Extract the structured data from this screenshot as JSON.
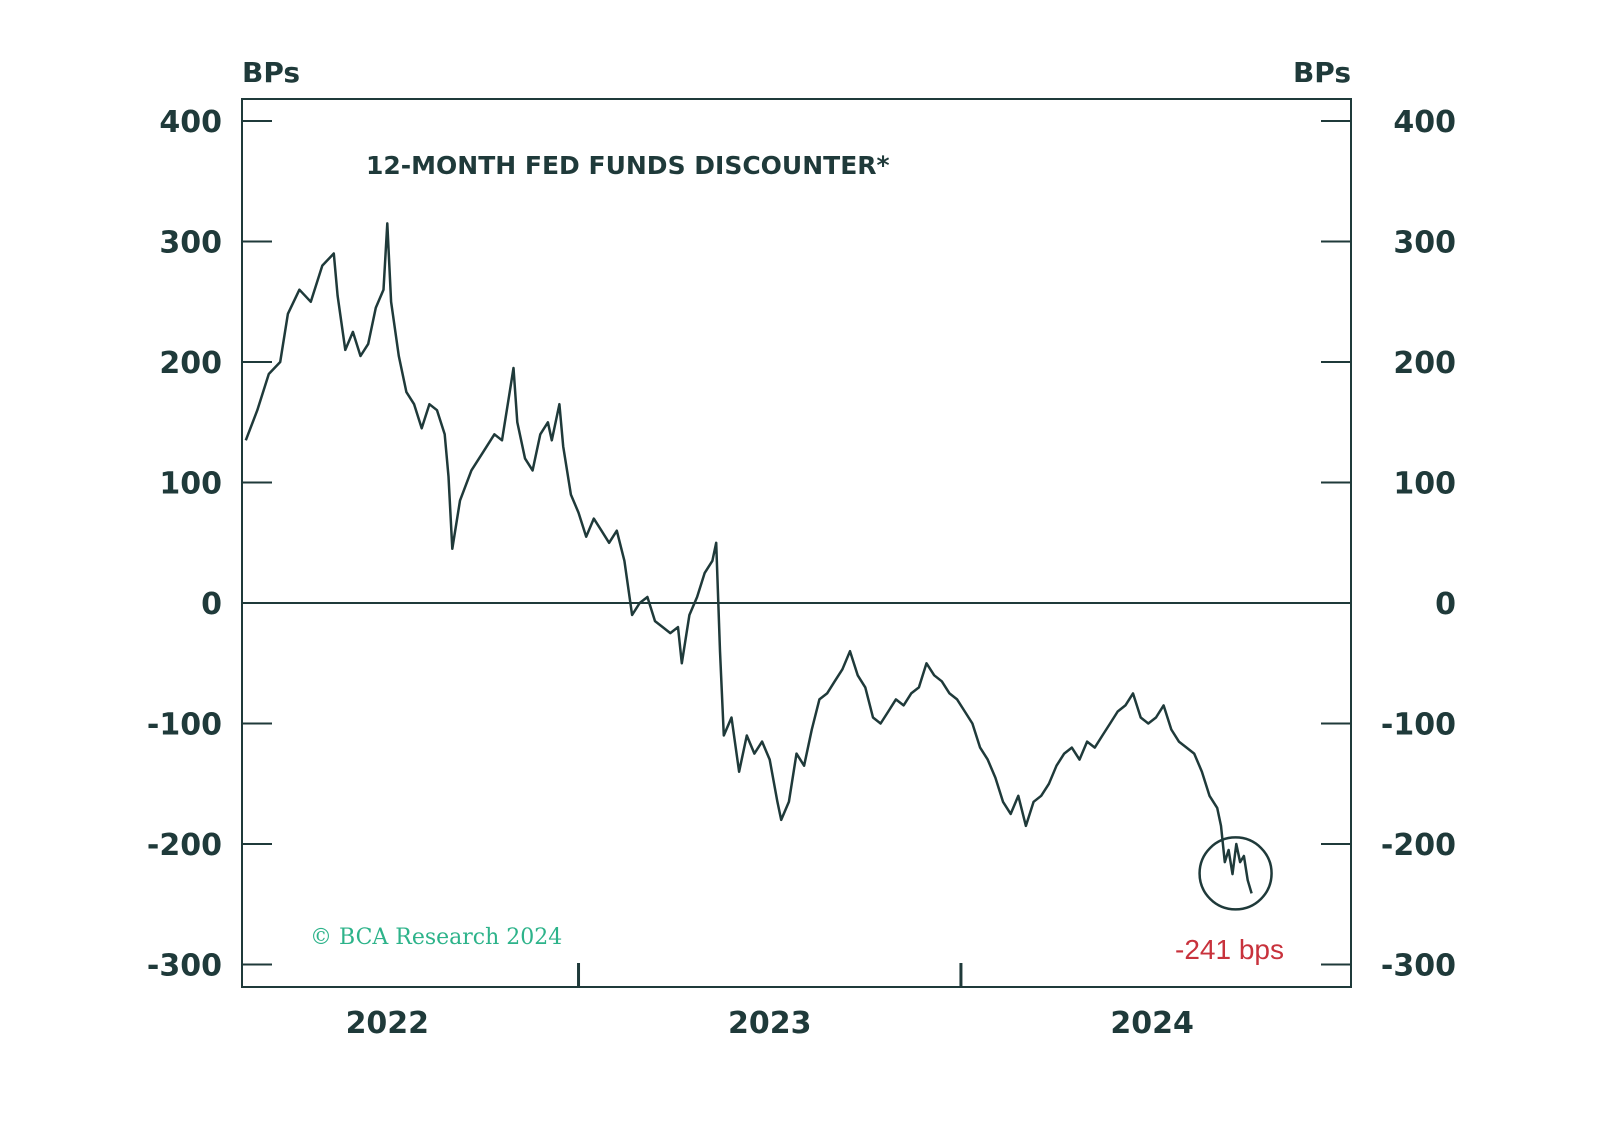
{
  "chart_data": {
    "type": "line",
    "title": "12-MONTH FED FUNDS DISCOUNTER*",
    "ylabel_left": "BPs",
    "ylabel_right": "BPs",
    "ylim": [
      -320,
      420
    ],
    "y_ticks": [
      400,
      300,
      200,
      100,
      0,
      -100,
      -200,
      -300
    ],
    "y_tick_labels": [
      "400",
      "300",
      "200",
      "100",
      "0",
      "-100",
      "-200",
      "-300"
    ],
    "x_range": [
      2021.62,
      2024.52
    ],
    "x_tick_positions": [
      2022.5,
      2023.5
    ],
    "x_labels": [
      {
        "label": "2022",
        "x": 2022.0
      },
      {
        "label": "2023",
        "x": 2023.0
      },
      {
        "label": "2024",
        "x": 2024.0
      }
    ],
    "zero_line": 0,
    "credit": "© BCA Research 2024",
    "annotation": {
      "label": "-241 bps",
      "x": 2024.26,
      "y": -241,
      "circle": true
    },
    "series": [
      {
        "name": "12-Month Fed Funds Discounter",
        "color": "#1f3a3a",
        "points": [
          [
            2021.63,
            135
          ],
          [
            2021.66,
            160
          ],
          [
            2021.69,
            190
          ],
          [
            2021.72,
            200
          ],
          [
            2021.74,
            240
          ],
          [
            2021.77,
            260
          ],
          [
            2021.8,
            250
          ],
          [
            2021.83,
            280
          ],
          [
            2021.86,
            290
          ],
          [
            2021.87,
            255
          ],
          [
            2021.89,
            210
          ],
          [
            2021.91,
            225
          ],
          [
            2021.93,
            205
          ],
          [
            2021.95,
            215
          ],
          [
            2021.97,
            245
          ],
          [
            2021.99,
            260
          ],
          [
            2022.0,
            315
          ],
          [
            2022.01,
            250
          ],
          [
            2022.03,
            205
          ],
          [
            2022.05,
            175
          ],
          [
            2022.07,
            165
          ],
          [
            2022.09,
            145
          ],
          [
            2022.11,
            165
          ],
          [
            2022.13,
            160
          ],
          [
            2022.15,
            140
          ],
          [
            2022.16,
            105
          ],
          [
            2022.17,
            45
          ],
          [
            2022.19,
            85
          ],
          [
            2022.22,
            110
          ],
          [
            2022.25,
            125
          ],
          [
            2022.28,
            140
          ],
          [
            2022.3,
            135
          ],
          [
            2022.32,
            175
          ],
          [
            2022.33,
            195
          ],
          [
            2022.34,
            150
          ],
          [
            2022.36,
            120
          ],
          [
            2022.38,
            110
          ],
          [
            2022.4,
            140
          ],
          [
            2022.42,
            150
          ],
          [
            2022.43,
            135
          ],
          [
            2022.45,
            165
          ],
          [
            2022.46,
            130
          ],
          [
            2022.48,
            90
          ],
          [
            2022.5,
            75
          ],
          [
            2022.52,
            55
          ],
          [
            2022.54,
            70
          ],
          [
            2022.56,
            60
          ],
          [
            2022.58,
            50
          ],
          [
            2022.6,
            60
          ],
          [
            2022.62,
            35
          ],
          [
            2022.64,
            -10
          ],
          [
            2022.66,
            0
          ],
          [
            2022.68,
            5
          ],
          [
            2022.7,
            -15
          ],
          [
            2022.72,
            -20
          ],
          [
            2022.74,
            -25
          ],
          [
            2022.76,
            -20
          ],
          [
            2022.77,
            -50
          ],
          [
            2022.79,
            -10
          ],
          [
            2022.81,
            5
          ],
          [
            2022.83,
            25
          ],
          [
            2022.85,
            35
          ],
          [
            2022.86,
            50
          ],
          [
            2022.87,
            -40
          ],
          [
            2022.88,
            -110
          ],
          [
            2022.9,
            -95
          ],
          [
            2022.92,
            -140
          ],
          [
            2022.94,
            -110
          ],
          [
            2022.96,
            -125
          ],
          [
            2022.98,
            -115
          ],
          [
            2023.0,
            -130
          ],
          [
            2023.02,
            -165
          ],
          [
            2023.03,
            -180
          ],
          [
            2023.05,
            -165
          ],
          [
            2023.07,
            -125
          ],
          [
            2023.09,
            -135
          ],
          [
            2023.11,
            -105
          ],
          [
            2023.13,
            -80
          ],
          [
            2023.15,
            -75
          ],
          [
            2023.17,
            -65
          ],
          [
            2023.19,
            -55
          ],
          [
            2023.21,
            -40
          ],
          [
            2023.23,
            -60
          ],
          [
            2023.25,
            -70
          ],
          [
            2023.27,
            -95
          ],
          [
            2023.29,
            -100
          ],
          [
            2023.31,
            -90
          ],
          [
            2023.33,
            -80
          ],
          [
            2023.35,
            -85
          ],
          [
            2023.37,
            -75
          ],
          [
            2023.39,
            -70
          ],
          [
            2023.41,
            -50
          ],
          [
            2023.43,
            -60
          ],
          [
            2023.45,
            -65
          ],
          [
            2023.47,
            -75
          ],
          [
            2023.49,
            -80
          ],
          [
            2023.51,
            -90
          ],
          [
            2023.53,
            -100
          ],
          [
            2023.55,
            -120
          ],
          [
            2023.57,
            -130
          ],
          [
            2023.59,
            -145
          ],
          [
            2023.61,
            -165
          ],
          [
            2023.63,
            -175
          ],
          [
            2023.65,
            -160
          ],
          [
            2023.67,
            -185
          ],
          [
            2023.69,
            -165
          ],
          [
            2023.71,
            -160
          ],
          [
            2023.73,
            -150
          ],
          [
            2023.75,
            -135
          ],
          [
            2023.77,
            -125
          ],
          [
            2023.79,
            -120
          ],
          [
            2023.81,
            -130
          ],
          [
            2023.83,
            -115
          ],
          [
            2023.85,
            -120
          ],
          [
            2023.87,
            -110
          ],
          [
            2023.89,
            -100
          ],
          [
            2023.91,
            -90
          ],
          [
            2023.93,
            -85
          ],
          [
            2023.95,
            -75
          ],
          [
            2023.97,
            -95
          ],
          [
            2023.99,
            -100
          ],
          [
            2024.01,
            -95
          ],
          [
            2024.03,
            -85
          ],
          [
            2024.05,
            -105
          ],
          [
            2024.07,
            -115
          ],
          [
            2024.09,
            -120
          ],
          [
            2024.11,
            -125
          ],
          [
            2024.13,
            -140
          ],
          [
            2024.15,
            -160
          ],
          [
            2024.17,
            -170
          ],
          [
            2024.18,
            -185
          ],
          [
            2024.19,
            -215
          ],
          [
            2024.2,
            -205
          ],
          [
            2024.21,
            -225
          ],
          [
            2024.22,
            -200
          ],
          [
            2024.23,
            -215
          ],
          [
            2024.24,
            -210
          ],
          [
            2024.25,
            -230
          ],
          [
            2024.26,
            -241
          ]
        ]
      }
    ]
  }
}
